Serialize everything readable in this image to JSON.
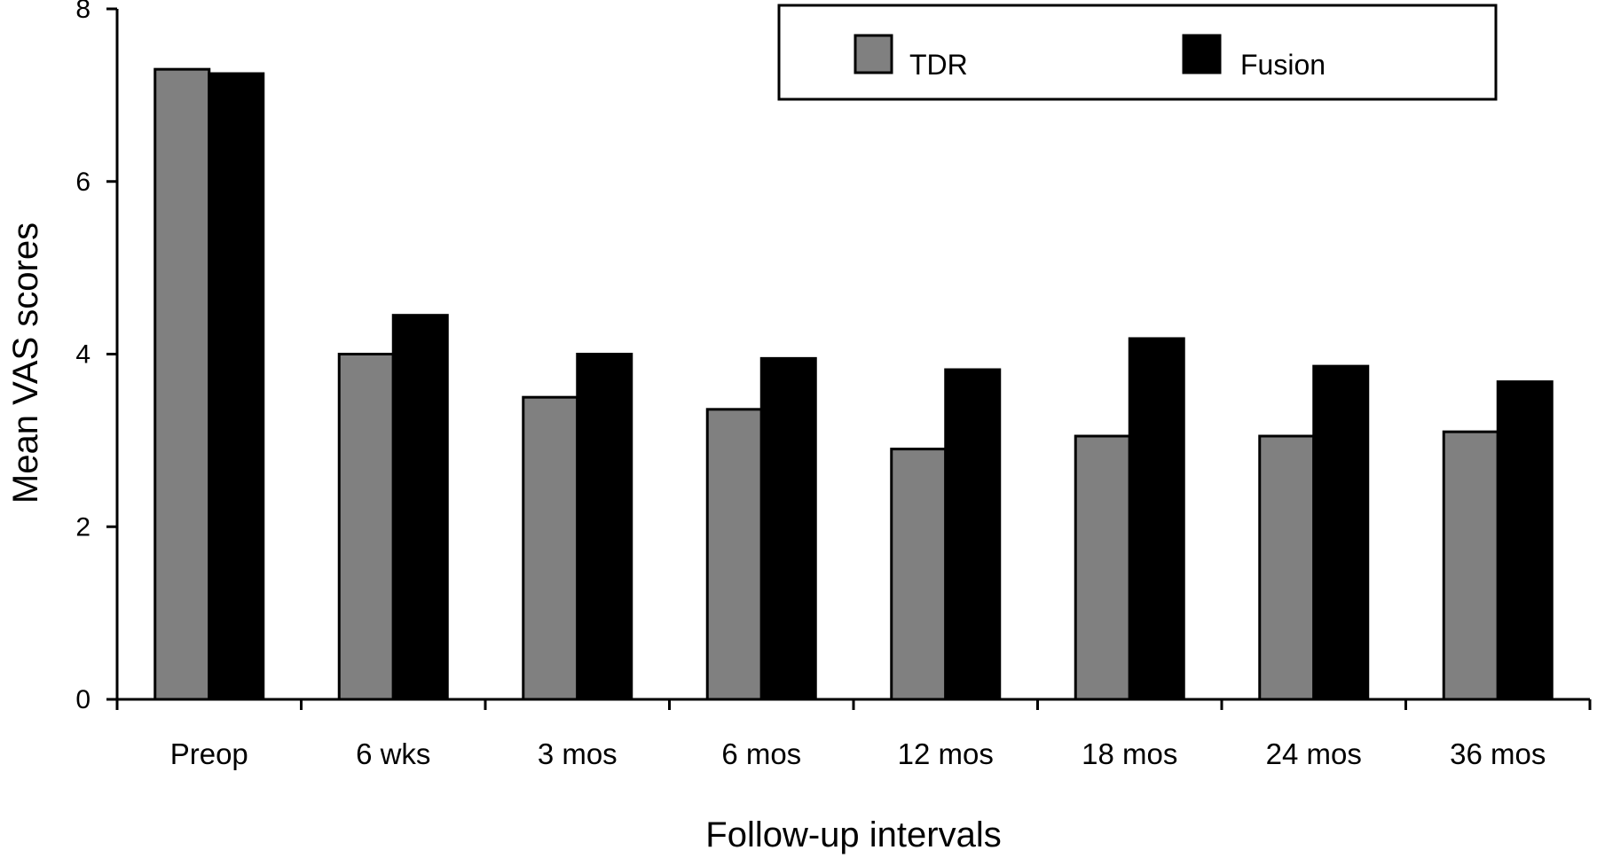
{
  "chart_data": {
    "type": "bar",
    "title": "",
    "xlabel": "Follow-up intervals",
    "ylabel": "Mean VAS scores",
    "ylim": [
      0,
      8
    ],
    "yticks": [
      0,
      2,
      4,
      6,
      8
    ],
    "grid": false,
    "legend_position": "top-right",
    "categories": [
      "Preop",
      "6 wks",
      "3 mos",
      "6 mos",
      "12 mos",
      "18 mos",
      "24 mos",
      "36 mos"
    ],
    "series": [
      {
        "name": "TDR",
        "color": "#808080",
        "values": [
          7.3,
          4.0,
          3.5,
          3.36,
          2.9,
          3.05,
          3.05,
          3.1
        ]
      },
      {
        "name": "Fusion",
        "color": "#000000",
        "values": [
          7.25,
          4.45,
          4.0,
          3.95,
          3.82,
          4.18,
          3.86,
          3.68
        ]
      }
    ]
  }
}
